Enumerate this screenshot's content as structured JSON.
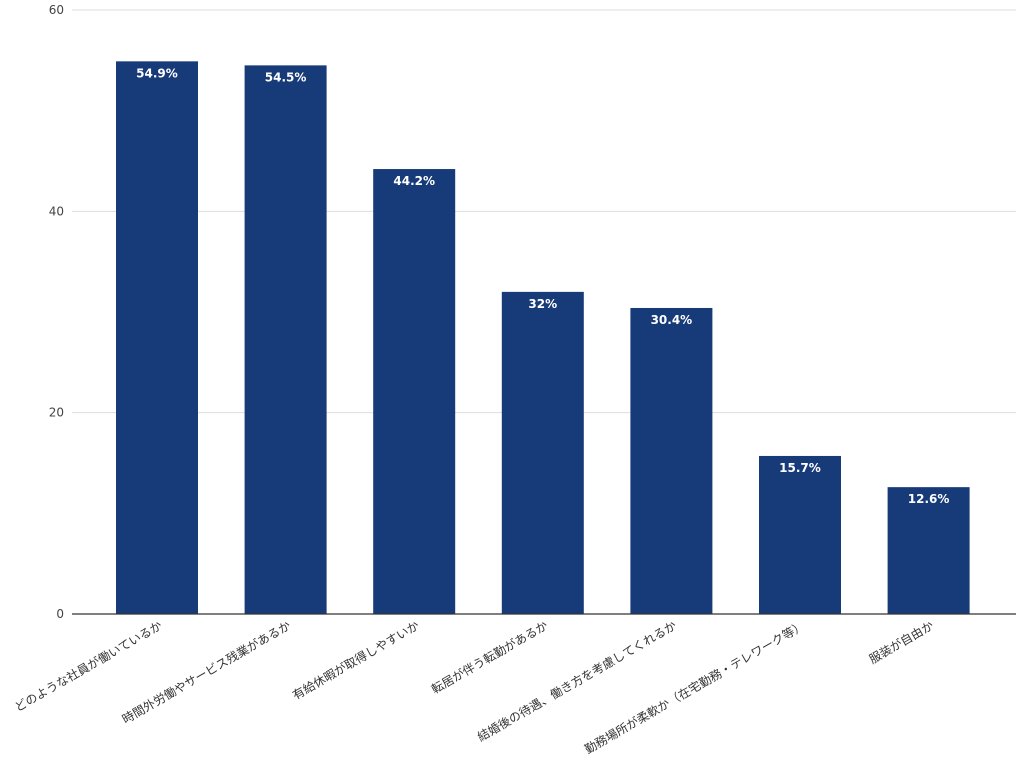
{
  "chart_data": {
    "type": "bar",
    "title": "",
    "xlabel": "",
    "ylabel": "",
    "ylim": [
      0,
      60
    ],
    "yticks": [
      0,
      20,
      40,
      60
    ],
    "grid": true,
    "bar_color": "#173a78",
    "categories": [
      "どのような社員が働いているか",
      "時間外労働やサービス残業があるか",
      "有給休暇が取得しやすいか",
      "転居が伴う転勤があるか",
      "結婚後の待遇、働き方を考慮してくれるか",
      "勤務場所が柔軟か（在宅勤務・テレワーク等）",
      "服装が自由か"
    ],
    "values": [
      54.9,
      54.5,
      44.2,
      32,
      30.4,
      15.7,
      12.6
    ],
    "data_labels": [
      "54.9%",
      "54.5%",
      "44.2%",
      "32%",
      "30.4%",
      "15.7%",
      "12.6%"
    ]
  }
}
